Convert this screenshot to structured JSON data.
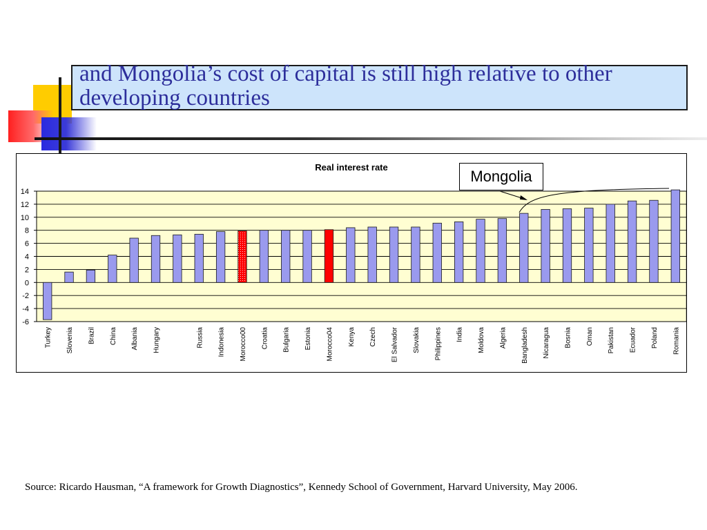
{
  "slide": {
    "title": "and Mongolia’s cost of capital is still high relative to other developing countries",
    "callout_label": "Mongolia",
    "source": "Source: Ricardo Hausman, “A framework for Growth Diagnostics”, Kennedy School of Government, Harvard University, May 2006."
  },
  "chart_data": {
    "type": "bar",
    "title": "Real interest rate",
    "xlabel": "",
    "ylabel": "",
    "ylim": [
      -6,
      14
    ],
    "yticks": [
      14,
      12,
      10,
      8,
      6,
      4,
      2,
      0,
      -2,
      -4,
      -6
    ],
    "grid": true,
    "legend": "none",
    "categories": [
      "Turkey",
      "Slovenia",
      "Brazil",
      "China",
      "Albania",
      "Hungary",
      "",
      "Russia",
      "Indonesia",
      "Morocco00",
      "Croatia",
      "Bulgaria",
      "Estonia",
      "Morocco04",
      "Kenya",
      "Czech",
      "El Salvador",
      "Slovakia",
      "Philippines",
      "India",
      "Moldova",
      "Algeria",
      "Bangladesh",
      "Nicaragua",
      "Bosnia",
      "Oman",
      "Pakistan",
      "Ecuador",
      "Poland",
      "Romania"
    ],
    "values": [
      -5.7,
      1.6,
      1.9,
      4.2,
      6.8,
      7.2,
      7.3,
      7.4,
      7.8,
      7.9,
      8.0,
      8.0,
      8.0,
      8.1,
      8.4,
      8.5,
      8.5,
      8.5,
      9.1,
      9.3,
      9.7,
      9.8,
      10.6,
      11.2,
      11.3,
      11.4,
      12.0,
      12.5,
      12.6,
      14.2
    ],
    "bar_styles": [
      "normal",
      "normal",
      "normal",
      "normal",
      "normal",
      "normal",
      "normal",
      "normal",
      "normal",
      "dotted-red",
      "normal",
      "normal",
      "normal",
      "red",
      "normal",
      "normal",
      "normal",
      "normal",
      "normal",
      "normal",
      "normal",
      "normal",
      "normal",
      "normal",
      "normal",
      "normal",
      "normal",
      "normal",
      "normal",
      "normal"
    ],
    "colors": {
      "bar": "#9a9aee",
      "bar_border": "#1a1a1a",
      "highlight": "#ff0000",
      "highlight_dotted": "#ff6a6a",
      "plot_bg": "#fffed2"
    }
  }
}
